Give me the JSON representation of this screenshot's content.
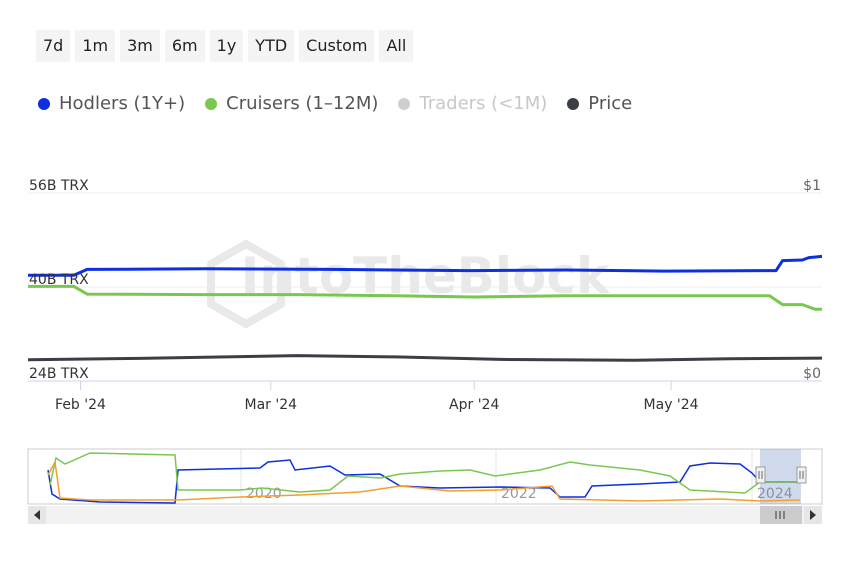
{
  "range_buttons": [
    "7d",
    "1m",
    "3m",
    "6m",
    "1y",
    "YTD",
    "Custom",
    "All"
  ],
  "legend": [
    {
      "label": "Hodlers (1Y+)",
      "color": "#0e2fe0",
      "hidden": false
    },
    {
      "label": "Cruisers (1–12M)",
      "color": "#78c850",
      "hidden": false
    },
    {
      "label": "Traders (<1M)",
      "color": "#cfcfcf",
      "hidden": true
    },
    {
      "label": "Price",
      "color": "#3b3e45",
      "hidden": false
    }
  ],
  "watermark": "IntoTheBlock",
  "navigator": {
    "year_labels": [
      "2020",
      "2022",
      "2024"
    ],
    "scroll_left_icon": "arrow-left-icon",
    "scroll_right_icon": "arrow-right-icon",
    "scroll_grip_icon": "grip-icon"
  },
  "chart_data": {
    "type": "line",
    "yaxis_left": {
      "ticks": [
        "56B TRX",
        "40B TRX",
        "24B TRX"
      ],
      "range": [
        24,
        56
      ],
      "unit": "B TRX"
    },
    "yaxis_right": {
      "ticks": [
        "$1",
        "$0"
      ],
      "range": [
        0,
        1
      ]
    },
    "xaxis": {
      "ticks": [
        "Feb '24",
        "Mar '24",
        "Apr '24",
        "May '24"
      ],
      "tick_dates": [
        "2024-02-01",
        "2024-03-01",
        "2024-04-01",
        "2024-05-01"
      ],
      "range": [
        "2024-01-24",
        "2024-05-24"
      ]
    },
    "series": [
      {
        "name": "Hodlers (1Y+)",
        "axis": "left",
        "color": "#0e2fe0",
        "points": [
          [
            "2024-01-24",
            42.0
          ],
          [
            "2024-01-31",
            42.0
          ],
          [
            "2024-02-02",
            43.0
          ],
          [
            "2024-02-20",
            43.1
          ],
          [
            "2024-03-10",
            43.0
          ],
          [
            "2024-03-31",
            42.8
          ],
          [
            "2024-04-15",
            42.9
          ],
          [
            "2024-04-30",
            42.7
          ],
          [
            "2024-05-15",
            42.8
          ],
          [
            "2024-05-17",
            42.8
          ],
          [
            "2024-05-18",
            44.5
          ],
          [
            "2024-05-21",
            44.6
          ],
          [
            "2024-05-22",
            45.0
          ],
          [
            "2024-05-24",
            45.2
          ]
        ]
      },
      {
        "name": "Cruisers (1–12M)",
        "axis": "left",
        "color": "#78c850",
        "points": [
          [
            "2024-01-24",
            40.1
          ],
          [
            "2024-01-31",
            40.1
          ],
          [
            "2024-02-02",
            38.8
          ],
          [
            "2024-02-20",
            38.7
          ],
          [
            "2024-03-05",
            38.7
          ],
          [
            "2024-03-20",
            38.5
          ],
          [
            "2024-04-01",
            38.3
          ],
          [
            "2024-04-15",
            38.5
          ],
          [
            "2024-05-01",
            38.5
          ],
          [
            "2024-05-16",
            38.5
          ],
          [
            "2024-05-18",
            37.0
          ],
          [
            "2024-05-21",
            37.0
          ],
          [
            "2024-05-23",
            36.2
          ],
          [
            "2024-05-24",
            36.2
          ]
        ]
      },
      {
        "name": "Price",
        "axis": "right",
        "color": "#3b3e45",
        "points": [
          [
            "2024-01-24",
            0.113
          ],
          [
            "2024-02-10",
            0.12
          ],
          [
            "2024-03-05",
            0.135
          ],
          [
            "2024-03-20",
            0.128
          ],
          [
            "2024-04-05",
            0.115
          ],
          [
            "2024-04-25",
            0.11
          ],
          [
            "2024-05-10",
            0.118
          ],
          [
            "2024-05-24",
            0.122
          ]
        ]
      }
    ]
  }
}
